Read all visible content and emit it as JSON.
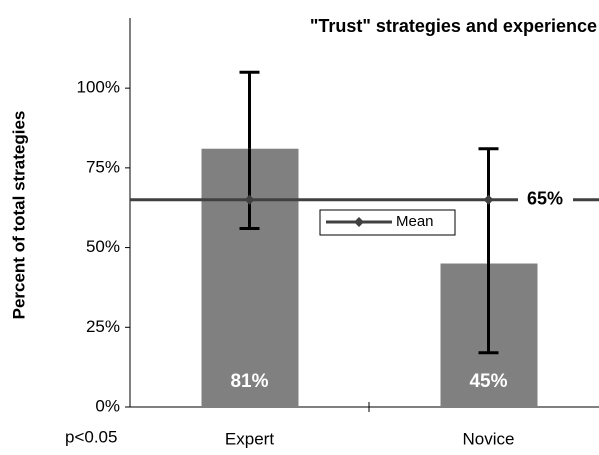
{
  "chart_data": {
    "type": "bar",
    "title": "\"Trust\" strategies and experience",
    "y_axis_label": "Percent of total strategies",
    "annotation": "p<0.05",
    "categories": [
      "Expert",
      "Novice"
    ],
    "values": [
      81,
      45
    ],
    "value_labels": [
      "81%",
      "45%"
    ],
    "error_minus": [
      25,
      28
    ],
    "error_plus": [
      24,
      36
    ],
    "color": "#808080",
    "error_color": "#000000",
    "mean": {
      "name": "Mean",
      "value": 65,
      "label": "65%",
      "color": "#404040"
    },
    "ylim": [
      0,
      122
    ],
    "yticks": [
      {
        "value": 0,
        "label": "0%"
      },
      {
        "value": 25,
        "label": "25%"
      },
      {
        "value": 50,
        "label": "50%"
      },
      {
        "value": 75,
        "label": "75%"
      },
      {
        "value": 100,
        "label": "100%"
      }
    ]
  }
}
